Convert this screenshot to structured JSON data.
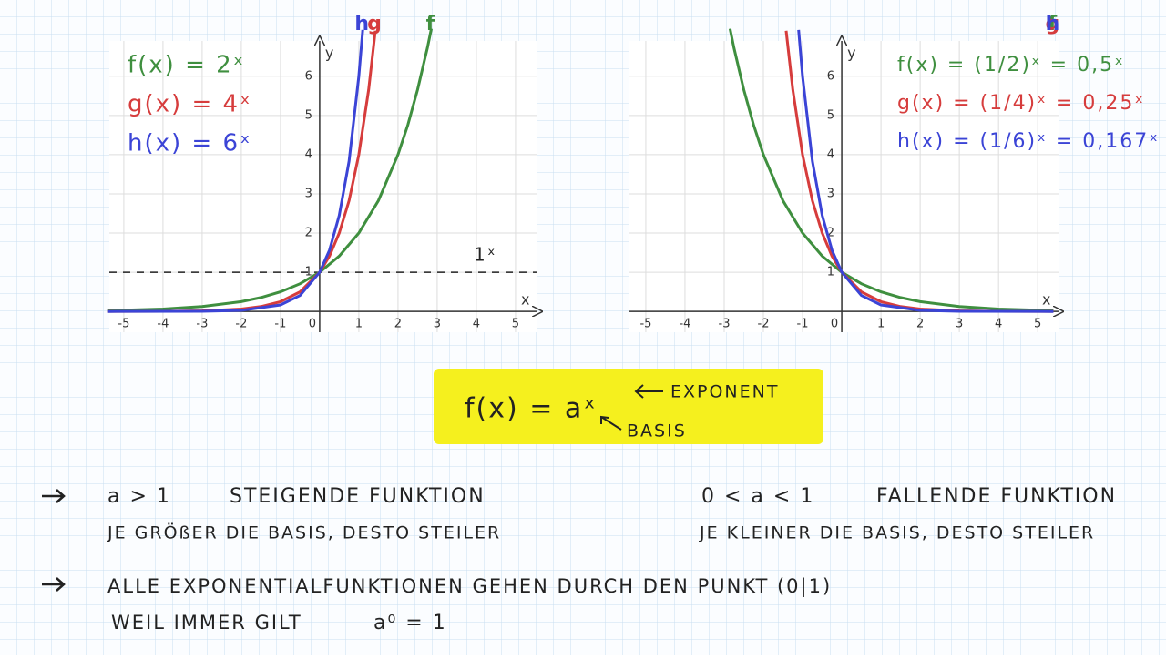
{
  "chart_data": [
    {
      "type": "line",
      "xlim": [
        -5.37,
        5.56
      ],
      "ylim": [
        -0.53,
        6.9
      ],
      "xticks": [
        -5,
        -4,
        -3,
        -2,
        -1,
        0,
        1,
        2,
        3,
        4,
        5
      ],
      "yticks": [
        1,
        2,
        3,
        4,
        5,
        6
      ],
      "x_label": "x",
      "y_label": "y",
      "grid": true,
      "series": [
        {
          "name": "f",
          "color": "#3f8f3f",
          "x": [
            -5.4,
            -5,
            -4,
            -3,
            -2,
            -1.5,
            -1,
            -0.5,
            0,
            0.5,
            1,
            1.5,
            2,
            2.25,
            2.5,
            2.75,
            2.85
          ],
          "values": [
            0.024,
            0.031,
            0.063,
            0.125,
            0.25,
            0.354,
            0.5,
            0.707,
            1,
            1.414,
            2,
            2.828,
            4,
            4.757,
            5.657,
            6.727,
            7.21
          ]
        },
        {
          "name": "g",
          "color": "#d63c3c",
          "x": [
            -5.4,
            -4,
            -3,
            -2,
            -1.5,
            -1,
            -0.5,
            0,
            0.25,
            0.5,
            0.75,
            1,
            1.25,
            1.42
          ],
          "values": [
            0.001,
            0.004,
            0.016,
            0.063,
            0.125,
            0.25,
            0.5,
            1,
            1.414,
            2,
            2.828,
            4,
            5.657,
            7.16
          ]
        },
        {
          "name": "h",
          "color": "#3b44d6",
          "x": [
            -5.4,
            -3,
            -2,
            -1,
            -0.5,
            0,
            0.25,
            0.5,
            0.75,
            1,
            1.1
          ],
          "values": [
            0,
            0.005,
            0.028,
            0.167,
            0.408,
            1,
            1.565,
            2.449,
            3.834,
            6,
            7.18
          ]
        }
      ],
      "equations": [
        "f(x) = 2ˣ",
        "g(x) = 4ˣ",
        "h(x) = 6ˣ"
      ],
      "reference_line": {
        "value": 1,
        "label": "1ˣ"
      }
    },
    {
      "type": "line",
      "xlim": [
        -5.44,
        5.53
      ],
      "ylim": [
        -0.53,
        6.9
      ],
      "xticks": [
        -5,
        -4,
        -3,
        -2,
        -1,
        0,
        1,
        2,
        3,
        4,
        5
      ],
      "yticks": [
        1,
        2,
        3,
        4,
        5,
        6
      ],
      "x_label": "x",
      "y_label": "y",
      "grid": true,
      "series": [
        {
          "name": "f",
          "color": "#3f8f3f",
          "x": [
            -2.85,
            -2.75,
            -2.5,
            -2.25,
            -2,
            -1.5,
            -1,
            -0.5,
            0,
            0.5,
            1,
            1.5,
            2,
            3,
            4,
            5,
            5.4
          ],
          "values": [
            7.21,
            6.727,
            5.657,
            4.757,
            4,
            2.828,
            2,
            1.414,
            1,
            0.707,
            0.5,
            0.354,
            0.25,
            0.125,
            0.063,
            0.031,
            0.024
          ]
        },
        {
          "name": "g",
          "color": "#d63c3c",
          "x": [
            -1.42,
            -1.25,
            -1,
            -0.75,
            -0.5,
            -0.25,
            0,
            0.5,
            1,
            1.5,
            2,
            3,
            4,
            5.4
          ],
          "values": [
            7.16,
            5.657,
            4,
            2.828,
            2,
            1.414,
            1,
            0.5,
            0.25,
            0.125,
            0.063,
            0.016,
            0.004,
            0.001
          ]
        },
        {
          "name": "h",
          "color": "#3b44d6",
          "x": [
            -1.1,
            -1,
            -0.75,
            -0.5,
            -0.25,
            0,
            0.5,
            1,
            2,
            3,
            5.4
          ],
          "values": [
            7.18,
            6,
            3.834,
            2.449,
            1.565,
            1,
            0.408,
            0.167,
            0.028,
            0.005,
            0
          ]
        }
      ],
      "equations": [
        "f(x) = (1/2)ˣ = 0,5ˣ",
        "g(x) = (1/4)ˣ = 0,25ˣ",
        "h(x) = (1/6)ˣ = 0,167ˣ"
      ]
    }
  ],
  "box": {
    "formula": "f(x) = aˣ",
    "exponent_label": "EXPONENT",
    "basis_label": "BASIS"
  },
  "notes": {
    "left": [
      "a > 1",
      "STEIGENDE FUNKTION",
      "JE GRÖßER DIE BASIS, DESTO STEILER"
    ],
    "right": [
      "0 < a < 1",
      "FALLENDE FUNKTION",
      "JE KLEINER DIE BASIS, DESTO STEILER"
    ],
    "bottom": [
      "ALLE EXPONENTIALFUNKTIONEN GEHEN DURCH DEN PUNKT (0|1)",
      "WEIL IMMER GILT",
      "a⁰ = 1"
    ]
  }
}
